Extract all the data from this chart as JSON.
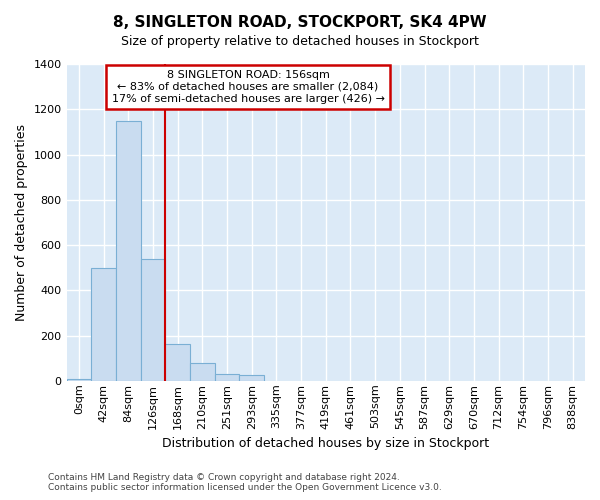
{
  "title": "8, SINGLETON ROAD, STOCKPORT, SK4 4PW",
  "subtitle": "Size of property relative to detached houses in Stockport",
  "xlabel": "Distribution of detached houses by size in Stockport",
  "ylabel": "Number of detached properties",
  "footnote1": "Contains HM Land Registry data © Crown copyright and database right 2024.",
  "footnote2": "Contains public sector information licensed under the Open Government Licence v3.0.",
  "bar_labels": [
    "0sqm",
    "42sqm",
    "84sqm",
    "126sqm",
    "168sqm",
    "210sqm",
    "251sqm",
    "293sqm",
    "335sqm",
    "377sqm",
    "419sqm",
    "461sqm",
    "503sqm",
    "545sqm",
    "587sqm",
    "629sqm",
    "670sqm",
    "712sqm",
    "754sqm",
    "796sqm",
    "838sqm"
  ],
  "bar_values": [
    10,
    500,
    1150,
    540,
    165,
    80,
    30,
    25,
    0,
    0,
    0,
    0,
    0,
    0,
    0,
    0,
    0,
    0,
    0,
    0,
    0
  ],
  "bar_color": "#c9dcf0",
  "bar_edgecolor": "#7aafd4",
  "plot_bg_color": "#dceaf7",
  "fig_bg_color": "#ffffff",
  "grid_color": "#ffffff",
  "vline_color": "#cc0000",
  "ann_box_edgecolor": "#cc0000",
  "ann_line1": "8 SINGLETON ROAD: 156sqm",
  "ann_line2": "← 83% of detached houses are smaller (2,084)",
  "ann_line3": "17% of semi-detached houses are larger (426) →",
  "ylim": [
    0,
    1400
  ],
  "yticks": [
    0,
    200,
    400,
    600,
    800,
    1000,
    1200,
    1400
  ],
  "title_fontsize": 11,
  "subtitle_fontsize": 9,
  "ylabel_fontsize": 9,
  "xlabel_fontsize": 9,
  "tick_fontsize": 8,
  "ann_fontsize": 8,
  "footnote_fontsize": 6.5
}
